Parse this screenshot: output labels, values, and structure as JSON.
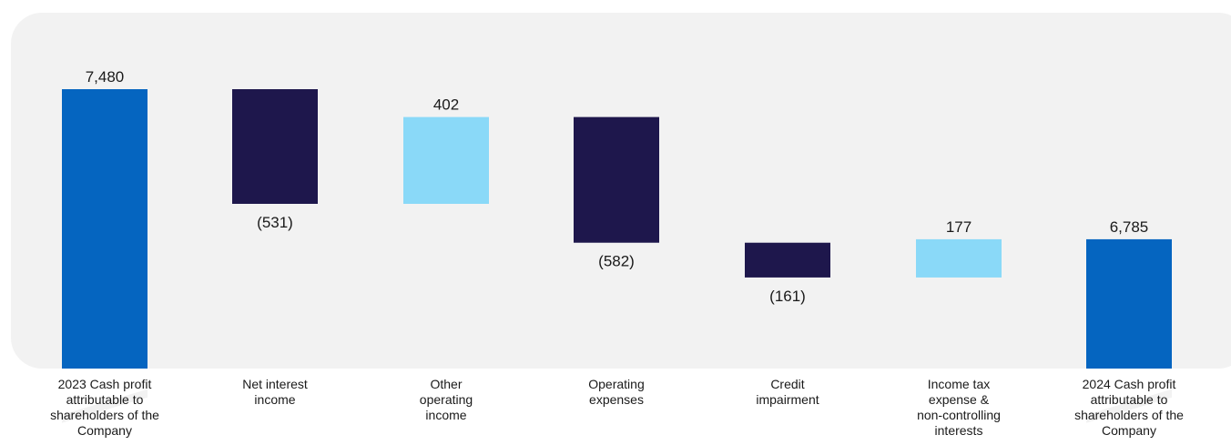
{
  "chart_data": {
    "type": "bar",
    "subtype": "waterfall",
    "title": "",
    "xlabel": "",
    "ylabel": "",
    "categories": [
      "2023 Cash profit attributable to shareholders of the Company",
      "Net interest income",
      "Other operating income",
      "Operating expenses",
      "Credit impairment",
      "Income tax expense & non-controlling interests",
      "2024 Cash profit attributable to shareholders of the Company"
    ],
    "category_lines": [
      [
        "2023 Cash profit",
        "attributable to",
        "shareholders of the",
        "Company"
      ],
      [
        "Net interest",
        "income"
      ],
      [
        "Other",
        "operating",
        "income"
      ],
      [
        "Operating",
        "expenses"
      ],
      [
        "Credit",
        "impairment"
      ],
      [
        "Income tax",
        "expense &",
        "non-controlling",
        "interests"
      ],
      [
        "2024 Cash profit",
        "attributable to",
        "shareholders of the",
        "Company"
      ]
    ],
    "values": [
      7480,
      -531,
      402,
      -582,
      -161,
      177,
      6785
    ],
    "kinds": [
      "total",
      "change",
      "change",
      "change",
      "change",
      "change",
      "total"
    ],
    "labels": [
      "7,480",
      "(531)",
      "402",
      "(582)",
      "(161)",
      "177",
      "6,785"
    ],
    "axis_break": true,
    "grid": false,
    "legend": "none",
    "colors": {
      "total": "#0565c0",
      "increase": "#8ad9f8",
      "decrease": "#1e174c",
      "panel": "#f2f2f2",
      "text": "#1a1a1a"
    }
  }
}
